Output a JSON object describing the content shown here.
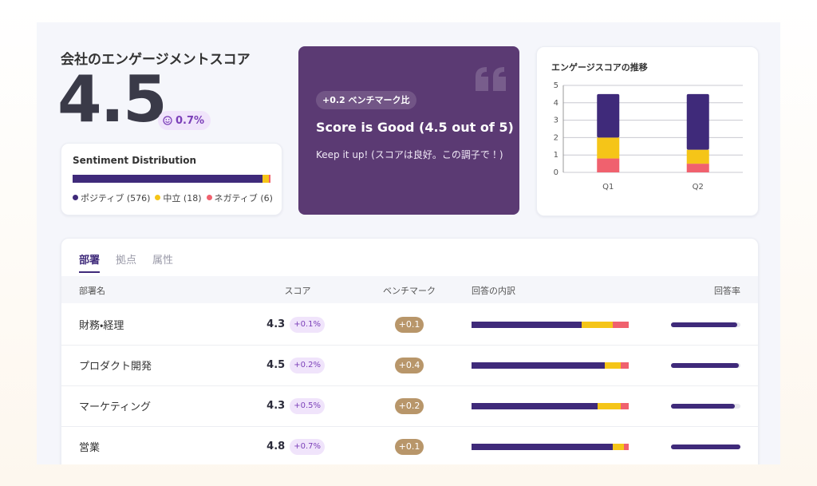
{
  "header": {
    "title": "会社のエンゲージメントスコア",
    "score": 4.5,
    "change": "0.7%"
  },
  "sentiment": {
    "title": "Sentiment Distribution",
    "segments": [
      {
        "label": "ポジティブ (576)",
        "value": 576,
        "color": "#3f2a7a"
      },
      {
        "label": "中立 (18)",
        "value": 18,
        "color": "#f5c518"
      },
      {
        "label": "ネガティブ (6)",
        "value": 6,
        "color": "#f0616e"
      }
    ]
  },
  "benchmark_card": {
    "badge": "+0.2 ベンチマーク比",
    "heading": "Score is Good (4.5 out of 5)",
    "text": "Keep it up! (スコアは良好。この調子で！)"
  },
  "chart_data": {
    "type": "bar",
    "stacked": true,
    "title": "エンゲージスコアの推移",
    "categories": [
      "Q1",
      "Q2"
    ],
    "series": [
      {
        "color": "#f0616e",
        "values": [
          0.8,
          0.5
        ]
      },
      {
        "color": "#f5c518",
        "values": [
          1.2,
          0.8
        ]
      },
      {
        "color": "#3f2a7a",
        "values": [
          2.5,
          3.2
        ]
      }
    ],
    "ylim": [
      0,
      5
    ],
    "yticks": [
      0,
      1,
      2,
      3,
      4,
      5
    ],
    "grid": true
  },
  "tabs": [
    "部署",
    "拠点",
    "属性"
  ],
  "table": {
    "columns": [
      "部署名",
      "スコア",
      "ベンチマーク",
      "回答の内訳",
      "回答率"
    ],
    "breakdown_colors": [
      "#3f2a7a",
      "#f5c518",
      "#f0616e"
    ],
    "rows": [
      {
        "name": "財務・経理",
        "score": 4.3,
        "change": "+0.1%",
        "benchmark": "+0.1",
        "breakdown": [
          70,
          20,
          10
        ],
        "response_rate": 95
      },
      {
        "name": "プロダクト開発",
        "score": 4.5,
        "change": "+0.2%",
        "benchmark": "+0.4",
        "breakdown": [
          85,
          10,
          5
        ],
        "response_rate": 98
      },
      {
        "name": "マーケティング",
        "score": 4.3,
        "change": "+0.5%",
        "benchmark": "+0.2",
        "breakdown": [
          80,
          15,
          5
        ],
        "response_rate": 92
      },
      {
        "name": "営業",
        "score": 4.8,
        "change": "+0.7%",
        "benchmark": "+0.1",
        "breakdown": [
          90,
          7,
          3
        ],
        "response_rate": 100
      }
    ]
  }
}
